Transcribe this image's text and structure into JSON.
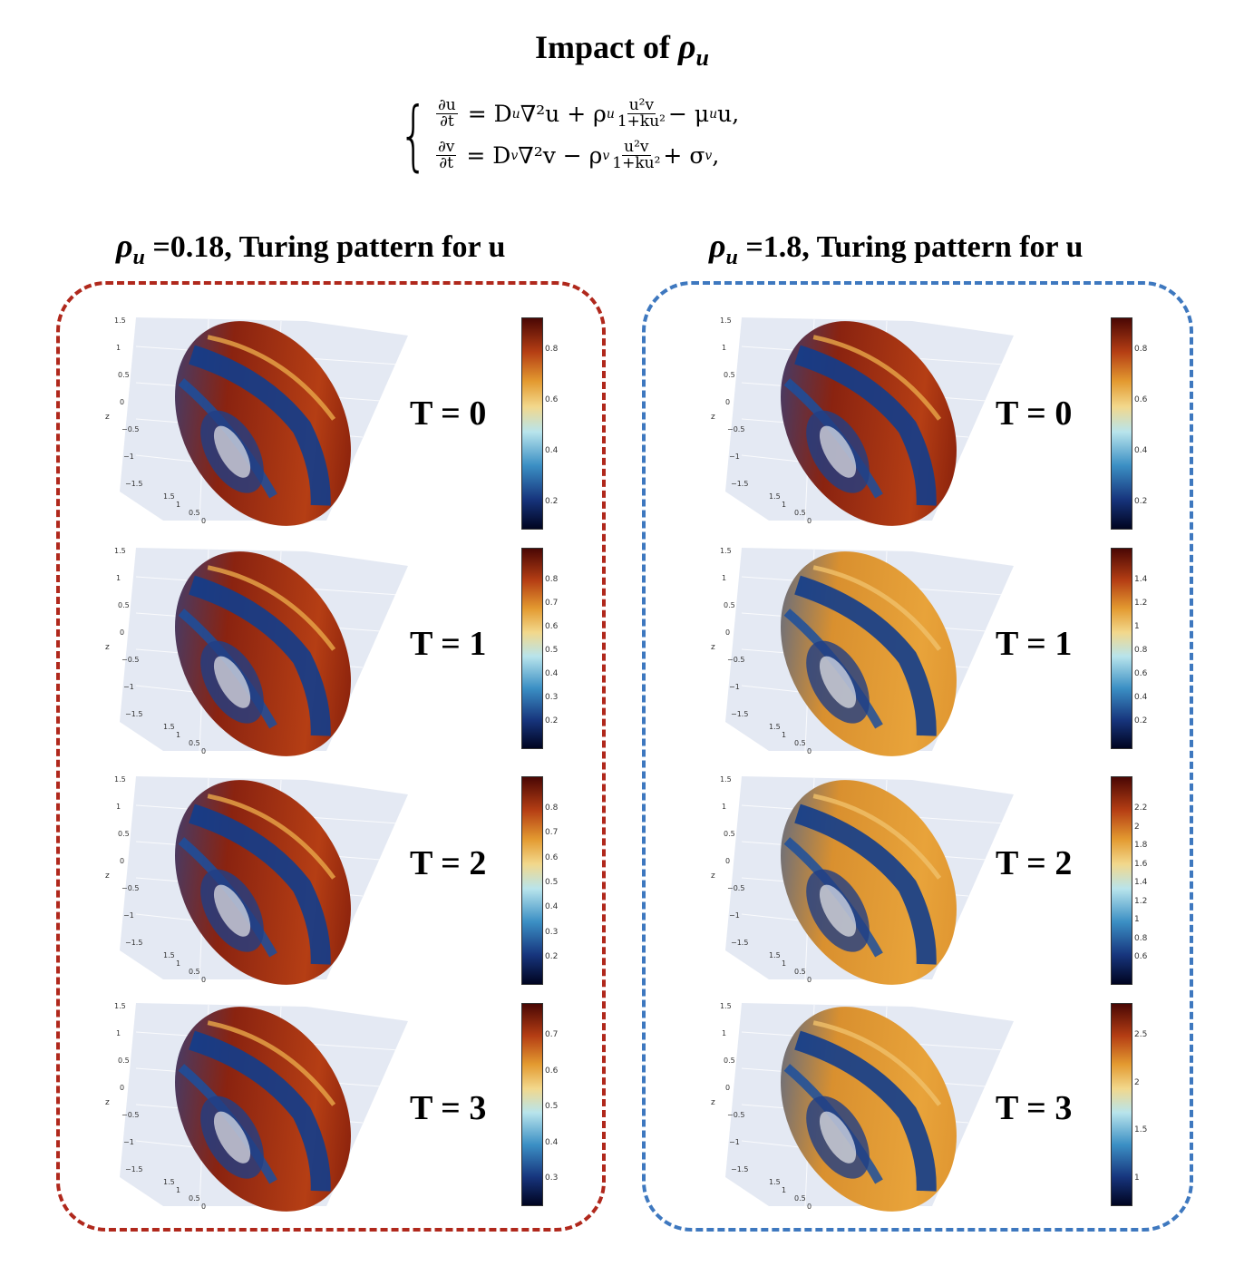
{
  "title": {
    "prefix": "Impact of ",
    "symbol": "ρ",
    "subscript": "u"
  },
  "equation": {
    "line1": {
      "lhs_num": "∂u",
      "lhs_den": "∂t",
      "rhs_a": "= D",
      "rhs_a_sub": "u",
      "rhs_b": "∇²u + ρ",
      "rhs_b_sub": "u",
      "frac_num": "u²v",
      "frac_den": "1+ku²",
      "rhs_c": "− μ",
      "rhs_c_sub": "u",
      "rhs_d": "u,"
    },
    "line2": {
      "lhs_num": "∂v",
      "lhs_den": "∂t",
      "rhs_a": "= D",
      "rhs_a_sub": "v",
      "rhs_b": "∇²v − ρ",
      "rhs_b_sub": "v",
      "frac_num": "u²v",
      "frac_den": "1+ku²",
      "rhs_c": "+ σ",
      "rhs_c_sub": "v",
      "rhs_d": ","
    }
  },
  "columns": [
    {
      "heading": {
        "symbol": "ρ",
        "subscript": "u",
        "text": " =0.18, Turing pattern for u"
      },
      "frame_color": "#b0281c",
      "panels": [
        {
          "time_label": "T = 0",
          "colorbar_ticks": [
            "0.8",
            "0.6",
            "0.4",
            "0.2"
          ]
        },
        {
          "time_label": "T = 1",
          "colorbar_ticks": [
            "0.8",
            "0.7",
            "0.6",
            "0.5",
            "0.4",
            "0.3",
            "0.2"
          ]
        },
        {
          "time_label": "T = 2",
          "colorbar_ticks": [
            "0.8",
            "0.7",
            "0.6",
            "0.5",
            "0.4",
            "0.3",
            "0.2"
          ]
        },
        {
          "time_label": "T = 3",
          "colorbar_ticks": [
            "0.7",
            "0.6",
            "0.5",
            "0.4",
            "0.3"
          ]
        }
      ]
    },
    {
      "heading": {
        "symbol": "ρ",
        "subscript": "u",
        "text": " =1.8, Turing pattern for u"
      },
      "frame_color": "#3e78bf",
      "panels": [
        {
          "time_label": "T = 0",
          "colorbar_ticks": [
            "0.8",
            "0.6",
            "0.4",
            "0.2"
          ]
        },
        {
          "time_label": "T = 1",
          "colorbar_ticks": [
            "1.4",
            "1.2",
            "1",
            "0.8",
            "0.6",
            "0.4",
            "0.2"
          ]
        },
        {
          "time_label": "T = 2",
          "colorbar_ticks": [
            "2.2",
            "2",
            "1.8",
            "1.6",
            "1.4",
            "1.2",
            "1",
            "0.8",
            "0.6"
          ]
        },
        {
          "time_label": "T = 3",
          "colorbar_ticks": [
            "2.5",
            "2",
            "1.5",
            "1"
          ]
        }
      ]
    }
  ],
  "axis": {
    "z_label": "z",
    "z_ticks": [
      "1.5",
      "1",
      "0.5",
      "0",
      "−0.5",
      "−1",
      "−1.5"
    ],
    "base_ticks": [
      "1.5",
      "1",
      "0.5",
      "0"
    ]
  }
}
